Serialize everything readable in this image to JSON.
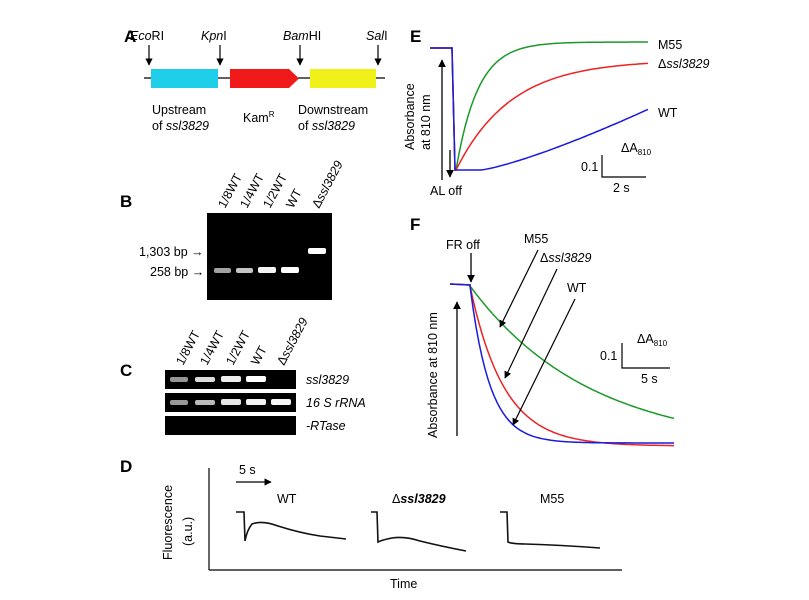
{
  "panels": {
    "A": {
      "label": "A",
      "sites": [
        {
          "name": "Eco",
          "suffix": "RI"
        },
        {
          "name": "Kpn",
          "suffix": "I"
        },
        {
          "name": "Bam",
          "suffix": "HI"
        },
        {
          "name": "Sal",
          "suffix": "I"
        }
      ],
      "upstream": {
        "line1": "Upstream",
        "line2_prefix": "of ",
        "line2_gene": "ssl3829",
        "color": "#1fcfea"
      },
      "kam": {
        "text": "Kam",
        "sup": "R",
        "color": "#f01a1a"
      },
      "downstream": {
        "line1": "Downstream",
        "line2_prefix": "of ",
        "line2_gene": "ssl3829",
        "color": "#f0f01a"
      }
    },
    "B": {
      "label": "B",
      "lanes": [
        "1/8WT",
        "1/4WT",
        "1/2WT",
        "WT",
        "Δssl3829"
      ],
      "bands": [
        {
          "text": "1,303 bp",
          "arrow": "→"
        },
        {
          "text": "258 bp",
          "arrow": "→"
        }
      ]
    },
    "C": {
      "label": "C",
      "lanes": [
        "1/8WT",
        "1/4WT",
        "1/2WT",
        "WT",
        "Δssl3829"
      ],
      "rows": [
        "ssl3829",
        "16 S rRNA",
        "-RTase"
      ]
    },
    "D": {
      "label": "D",
      "ylabel_line1": "Fluorescence",
      "ylabel_line2": "(a.u.)",
      "xlabel": "Time",
      "scale": "5 s",
      "traces": [
        {
          "prefix": "",
          "name": "WT"
        },
        {
          "prefix": "Δ",
          "name": "ssl3829"
        },
        {
          "prefix": "",
          "name": "M55"
        }
      ]
    },
    "E": {
      "label": "E",
      "ylabel_line1": "Absorbance",
      "ylabel_line2": "at 810 nm",
      "al_off": "AL off",
      "scale_y": "0.1",
      "scale_x": "2 s",
      "scale_unit": "ΔA",
      "scale_unit_sub": "810",
      "legend": [
        {
          "prefix": "",
          "name": "M55",
          "color": "#1a9a2a"
        },
        {
          "prefix": "Δ",
          "name": "ssl3829",
          "color": "#ee2222"
        },
        {
          "prefix": "",
          "name": "WT",
          "color": "#1a1ae0"
        }
      ]
    },
    "F": {
      "label": "F",
      "ylabel": "Absorbance at 810 nm",
      "fr_off": "FR off",
      "scale_y": "0.1",
      "scale_x": "5 s",
      "scale_unit": "ΔA",
      "scale_unit_sub": "810",
      "legend": [
        {
          "prefix": "",
          "name": "M55",
          "color": "#1a9a2a"
        },
        {
          "prefix": "Δ",
          "name": "ssl3829",
          "color": "#ee2222"
        },
        {
          "prefix": "",
          "name": "WT",
          "color": "#1a1ae0"
        }
      ]
    }
  }
}
